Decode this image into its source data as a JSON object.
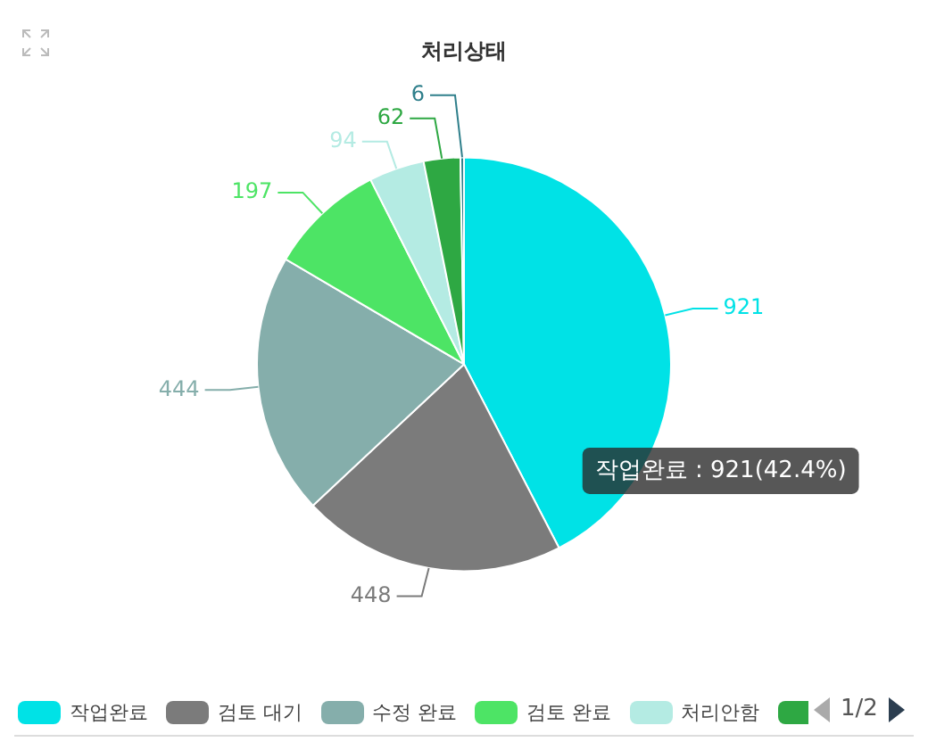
{
  "chart_data": {
    "type": "pie",
    "title": "처리상태",
    "categories": [
      "작업완료",
      "검토 대기",
      "수정 완료",
      "검토 완료",
      "처리안함",
      null,
      null
    ],
    "values": [
      921,
      448,
      444,
      197,
      94,
      62,
      6
    ],
    "colors": [
      "#00e2e6",
      "#7b7b7b",
      "#85aeab",
      "#4de465",
      "#b4ebe3",
      "#2ea843",
      "#2f7f8b"
    ],
    "data_labels": true,
    "legend": "bottom",
    "annotations": [
      "작업완료 : 921(42.4%)",
      "1/2"
    ]
  }
}
